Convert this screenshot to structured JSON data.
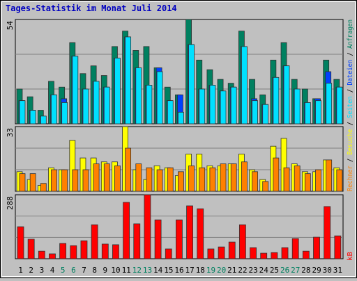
{
  "title": "Tages-Statistik im Monat Juli 2014",
  "chart_data": [
    {
      "type": "bar",
      "ylim": [
        0,
        54
      ],
      "yticks": [
        54
      ],
      "series": [
        {
          "name": "Anfragen",
          "color": "#008060",
          "values": [
            18,
            14,
            7,
            22,
            19,
            42,
            26,
            30,
            25,
            40,
            48,
            38,
            40,
            29,
            19,
            15,
            54,
            33,
            28,
            23,
            21,
            48,
            23,
            15,
            33,
            42,
            23,
            18,
            13,
            33,
            23
          ]
        },
        {
          "name": "Dateien",
          "color": "#0040ff",
          "values": [
            12,
            7,
            4,
            15,
            13,
            35,
            18,
            22,
            19,
            34,
            45,
            29,
            20,
            29,
            12,
            15,
            41,
            18,
            20,
            17,
            19,
            40,
            13,
            10,
            24,
            30,
            18,
            11,
            13,
            27,
            19
          ]
        },
        {
          "name": "Seiten",
          "color": "#00e0ff",
          "values": [
            12,
            7,
            4,
            15,
            11,
            35,
            18,
            22,
            19,
            34,
            45,
            29,
            20,
            27,
            12,
            6,
            41,
            18,
            20,
            17,
            19,
            40,
            12,
            10,
            24,
            30,
            18,
            11,
            12,
            21,
            19
          ]
        }
      ]
    },
    {
      "type": "bar",
      "ylim": [
        0,
        33
      ],
      "yticks": [
        33
      ],
      "series": [
        {
          "name": "Besuche",
          "color": "#ffff00",
          "values": [
            10,
            6,
            3,
            12,
            11,
            26,
            17,
            17,
            15,
            15,
            33,
            11,
            6,
            13,
            12,
            8,
            19,
            19,
            13,
            13,
            14,
            19,
            11,
            6,
            23,
            27,
            14,
            10,
            10,
            16,
            12
          ]
        },
        {
          "name": "Rechner",
          "color": "#ff8000",
          "values": [
            9,
            9,
            4,
            11,
            11,
            11,
            11,
            14,
            14,
            13,
            22,
            14,
            12,
            11,
            12,
            10,
            13,
            12,
            12,
            14,
            14,
            15,
            10,
            5,
            17,
            12,
            13,
            9,
            11,
            16,
            11
          ]
        }
      ]
    },
    {
      "type": "bar",
      "ylim": [
        0,
        288
      ],
      "yticks": [
        288
      ],
      "categories": [
        "1",
        "2",
        "3",
        "4",
        "5",
        "6",
        "7",
        "8",
        "9",
        "10",
        "11",
        "12",
        "13",
        "14",
        "15",
        "16",
        "17",
        "18",
        "19",
        "20",
        "21",
        "22",
        "23",
        "24",
        "25",
        "26",
        "27",
        "28",
        "29",
        "30",
        "31"
      ],
      "label_colors": [
        "#000000",
        "#000000",
        "#000000",
        "#000000",
        "#008060",
        "#008060",
        "#000000",
        "#000000",
        "#000000",
        "#000000",
        "#000000",
        "#008060",
        "#008060",
        "#000000",
        "#000000",
        "#000000",
        "#000000",
        "#000000",
        "#008060",
        "#008060",
        "#000000",
        "#000000",
        "#000000",
        "#000000",
        "#000000",
        "#008060",
        "#008060",
        "#000000",
        "#000000",
        "#000000",
        "#000000"
      ],
      "series": [
        {
          "name": "kB",
          "color": "#ff0000",
          "values": [
            144,
            88,
            34,
            22,
            69,
            59,
            81,
            153,
            66,
            63,
            254,
            157,
            288,
            175,
            44,
            175,
            238,
            225,
            44,
            53,
            75,
            153,
            50,
            25,
            28,
            50,
            91,
            34,
            97,
            235,
            103
          ]
        }
      ]
    }
  ]
}
